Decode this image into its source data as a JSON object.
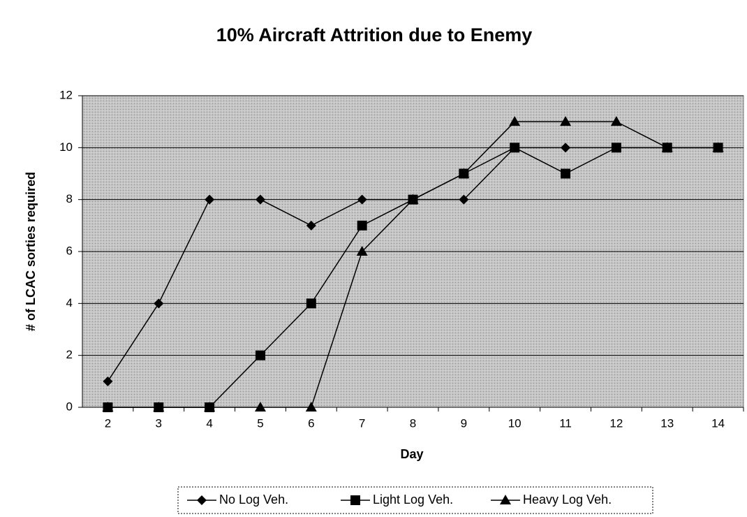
{
  "chart_data": {
    "type": "line",
    "title": "10% Aircraft Attrition due to Enemy",
    "x_label": "Day",
    "y_label": "# of LCAC sorties required",
    "categories": [
      "2",
      "3",
      "4",
      "5",
      "6",
      "7",
      "8",
      "9",
      "10",
      "11",
      "12",
      "13",
      "14"
    ],
    "series": [
      {
        "name": "No Log Veh.",
        "color": "#000000",
        "marker": "diamond",
        "values": [
          1,
          4,
          8,
          8,
          7,
          8,
          8,
          8,
          10,
          10,
          10,
          10,
          10
        ]
      },
      {
        "name": "Light Log Veh.",
        "color": "#000000",
        "marker": "square",
        "values": [
          0,
          0,
          0,
          2,
          4,
          7,
          8,
          9,
          10,
          9,
          10,
          10,
          10
        ]
      },
      {
        "name": "Heavy Log Veh.",
        "color": "#000000",
        "marker": "triangle",
        "values": [
          0,
          0,
          0,
          0,
          0,
          6,
          8,
          9,
          11,
          11,
          11,
          10,
          10
        ]
      }
    ],
    "ylim": [
      0,
      12
    ],
    "yticks": [
      0,
      2,
      4,
      6,
      8,
      10,
      12
    ],
    "grid": true,
    "legend": "bottom"
  }
}
